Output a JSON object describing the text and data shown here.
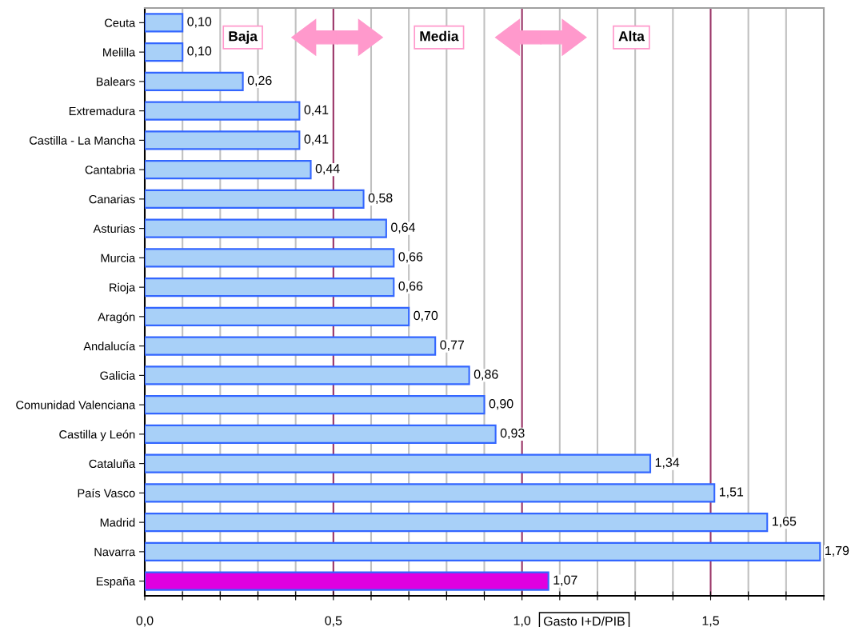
{
  "chart_data": {
    "type": "bar",
    "orientation": "horizontal",
    "xlabel": "Gasto I+D/PIB",
    "categories": [
      "Ceuta",
      "Melilla",
      "Balears",
      "Extremadura",
      "Castilla - La Mancha",
      "Cantabria",
      "Canarias",
      "Asturias",
      "Murcia",
      "Rioja",
      "Aragón",
      "Andalucía",
      "Galicia",
      "Comunidad Valenciana",
      "Castilla y León",
      "Cataluña",
      "País Vasco",
      "Madrid",
      "Navarra",
      "España"
    ],
    "values": [
      0.1,
      0.1,
      0.26,
      0.41,
      0.41,
      0.44,
      0.58,
      0.64,
      0.66,
      0.66,
      0.7,
      0.77,
      0.86,
      0.9,
      0.93,
      1.34,
      1.51,
      1.65,
      1.79,
      1.07
    ],
    "value_labels": [
      "0,10",
      "0,10",
      "0,26",
      "0,41",
      "0,41",
      "0,44",
      "0,58",
      "0,64",
      "0,66",
      "0,66",
      "0,70",
      "0,77",
      "0,86",
      "0,90",
      "0,93",
      "1,34",
      "1,51",
      "1,65",
      "1,79",
      "1,07"
    ],
    "colors": [
      "#a8d0f8",
      "#a8d0f8",
      "#a8d0f8",
      "#a8d0f8",
      "#a8d0f8",
      "#a8d0f8",
      "#a8d0f8",
      "#a8d0f8",
      "#a8d0f8",
      "#a8d0f8",
      "#a8d0f8",
      "#a8d0f8",
      "#a8d0f8",
      "#a8d0f8",
      "#a8d0f8",
      "#a8d0f8",
      "#a8d0f8",
      "#a8d0f8",
      "#a8d0f8",
      "#e000e0"
    ],
    "xlim": [
      0,
      1.8
    ],
    "xticks": [
      {
        "value": 0,
        "label": "0,0"
      },
      {
        "value": 0.1,
        "label": null
      },
      {
        "value": 0.2,
        "label": null
      },
      {
        "value": 0.3,
        "label": null
      },
      {
        "value": 0.4,
        "label": null
      },
      {
        "value": 0.5,
        "label": "0,5"
      },
      {
        "value": 0.6,
        "label": null
      },
      {
        "value": 0.7,
        "label": null
      },
      {
        "value": 0.8,
        "label": null
      },
      {
        "value": 0.9,
        "label": null
      },
      {
        "value": 1.0,
        "label": "1,0"
      },
      {
        "value": 1.1,
        "label": null
      },
      {
        "value": 1.2,
        "label": null
      },
      {
        "value": 1.3,
        "label": null
      },
      {
        "value": 1.4,
        "label": null
      },
      {
        "value": 1.5,
        "label": "1,5"
      },
      {
        "value": 1.6,
        "label": null
      },
      {
        "value": 1.7,
        "label": null
      },
      {
        "value": 1.8,
        "label": null
      }
    ],
    "grid": "x",
    "annotations": [
      "Baja",
      "Media",
      "Alta"
    ]
  }
}
